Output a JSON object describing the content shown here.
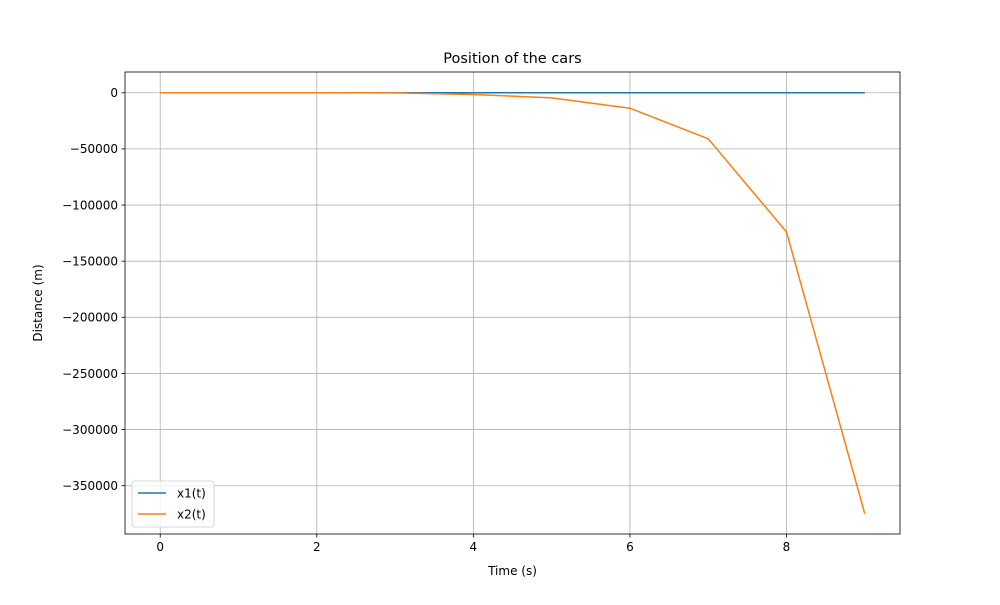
{
  "chart_data": {
    "type": "line",
    "title": "Position of the cars",
    "xlabel": "Time (s)",
    "ylabel": "Distance (m)",
    "xlim": [
      -0.45,
      9.45
    ],
    "ylim": [
      -393000,
      18500
    ],
    "xticks": [
      0,
      2,
      4,
      6,
      8
    ],
    "xtick_labels": [
      "0",
      "2",
      "4",
      "6",
      "8"
    ],
    "yticks": [
      0,
      -50000,
      -100000,
      -150000,
      -200000,
      -250000,
      -300000,
      -350000
    ],
    "ytick_labels": [
      "0",
      "−50000",
      "−100000",
      "−150000",
      "−200000",
      "−250000",
      "−300000",
      "−350000"
    ],
    "grid": true,
    "legend_position": "lower-left",
    "x": [
      0,
      1,
      2,
      3,
      4,
      5,
      6,
      7,
      8,
      9
    ],
    "series": [
      {
        "name": "x1(t)",
        "color": "#1f77b4",
        "values": [
          0,
          2,
          4,
          6,
          8,
          10,
          12,
          14,
          16,
          18
        ]
      },
      {
        "name": "x2(t)",
        "color": "#ff7f0e",
        "values": [
          0,
          -3,
          -18,
          -81,
          -1500,
          -4500,
          -13800,
          -41000,
          -124000,
          -375000
        ]
      }
    ]
  }
}
